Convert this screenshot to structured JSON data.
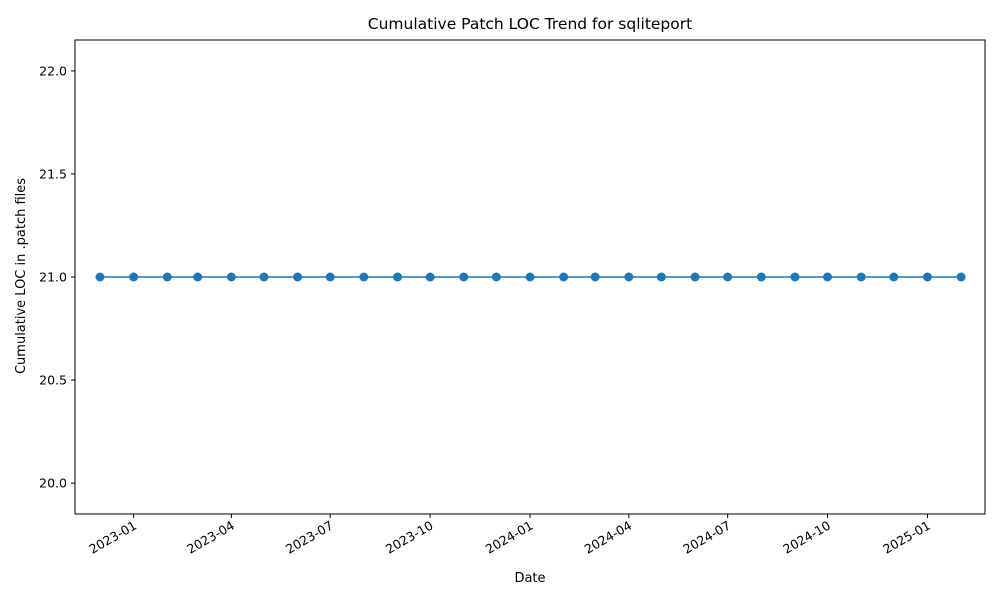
{
  "chart_data": {
    "type": "line",
    "title": "Cumulative Patch LOC Trend for sqliteport",
    "xlabel": "Date",
    "ylabel": "Cumulative LOC in .patch files",
    "x_tick_labels": [
      "2023-01",
      "2023-04",
      "2023-07",
      "2023-10",
      "2024-01",
      "2024-04",
      "2024-07",
      "2024-10",
      "2025-01"
    ],
    "x_tick_dates": [
      "2023-01-01",
      "2023-04-01",
      "2023-07-01",
      "2023-10-01",
      "2024-01-01",
      "2024-04-01",
      "2024-07-01",
      "2024-10-01",
      "2025-01-01"
    ],
    "y_tick_labels": [
      "20.0",
      "20.5",
      "21.0",
      "21.5",
      "22.0"
    ],
    "y_tick_values": [
      20.0,
      20.5,
      21.0,
      21.5,
      22.0
    ],
    "xlim": [
      "2022-11-08",
      "2025-02-23"
    ],
    "ylim": [
      19.85,
      22.15
    ],
    "grid": false,
    "color": "#1f77b4",
    "series": [
      {
        "x": [
          "2022-12-01",
          "2023-01-01",
          "2023-02-01",
          "2023-03-01",
          "2023-04-01",
          "2023-05-01",
          "2023-06-01",
          "2023-07-01",
          "2023-08-01",
          "2023-09-01",
          "2023-10-01",
          "2023-11-01",
          "2023-12-01",
          "2024-01-01",
          "2024-02-01",
          "2024-03-01",
          "2024-04-01",
          "2024-05-01",
          "2024-06-01",
          "2024-07-01",
          "2024-08-01",
          "2024-09-01",
          "2024-10-01",
          "2024-11-01",
          "2024-12-01",
          "2025-01-01",
          "2025-02-01"
        ],
        "values": [
          21,
          21,
          21,
          21,
          21,
          21,
          21,
          21,
          21,
          21,
          21,
          21,
          21,
          21,
          21,
          21,
          21,
          21,
          21,
          21,
          21,
          21,
          21,
          21,
          21,
          21,
          21
        ]
      }
    ]
  }
}
